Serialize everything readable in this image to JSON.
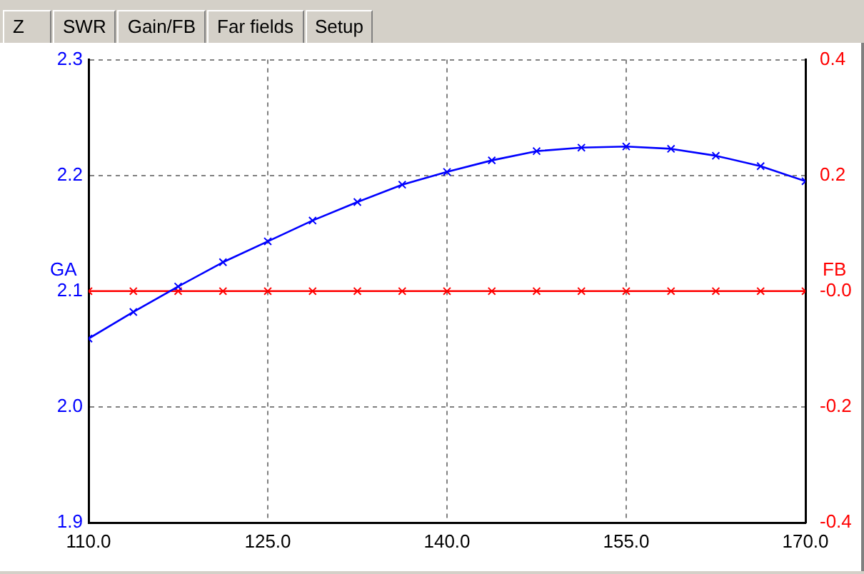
{
  "chart_data": {
    "type": "line",
    "annotations": [
      "Z",
      "SWR",
      "Gain/FB",
      "Far fields",
      "Setup"
    ],
    "ylabel": "GA",
    "y2label": "FB",
    "x": [
      110,
      113.75,
      117.5,
      121.25,
      125,
      128.75,
      132.5,
      136.25,
      140,
      143.75,
      147.5,
      151.25,
      155,
      158.75,
      162.5,
      166.25,
      170
    ],
    "series": [
      {
        "color": "#0000ff",
        "values": [
          2.059,
          2.082,
          2.104,
          2.125,
          2.143,
          2.161,
          2.177,
          2.192,
          2.203,
          2.213,
          2.221,
          2.224,
          2.225,
          2.223,
          2.217,
          2.208,
          2.195
        ]
      },
      {
        "color": "#ff0000",
        "axis": "y2",
        "values": [
          0,
          0,
          0,
          0,
          0,
          0,
          0,
          0,
          0,
          0,
          0,
          0,
          0,
          0,
          0,
          0,
          0
        ]
      }
    ],
    "xlim": [
      110,
      170
    ],
    "xticks": [
      {
        "value": 110,
        "label": "110.0"
      },
      {
        "value": 125,
        "label": "125.0"
      },
      {
        "value": 140,
        "label": "140.0"
      },
      {
        "value": 155,
        "label": "155.0"
      },
      {
        "value": 170,
        "label": "170.0"
      }
    ],
    "ylim": [
      1.9,
      2.3
    ],
    "yticks": [
      {
        "value": 1.9,
        "label": "1.9"
      },
      {
        "value": 2.0,
        "label": "2.0"
      },
      {
        "value": 2.1,
        "label": "2.1"
      },
      {
        "value": 2.2,
        "label": "2.2"
      },
      {
        "value": 2.3,
        "label": "2.3"
      }
    ],
    "y2lim": [
      -0.4,
      0.4
    ],
    "y2ticks": [
      {
        "value": -0.4,
        "label": "-0.4"
      },
      {
        "value": -0.2,
        "label": "-0.2"
      },
      {
        "value": 0,
        "label": "-0.0"
      },
      {
        "value": 0.2,
        "label": "0.2"
      },
      {
        "value": 0.4,
        "label": "0.4"
      }
    ],
    "grid": true,
    "marker": "cross",
    "line_style": "solid",
    "legend": false
  }
}
